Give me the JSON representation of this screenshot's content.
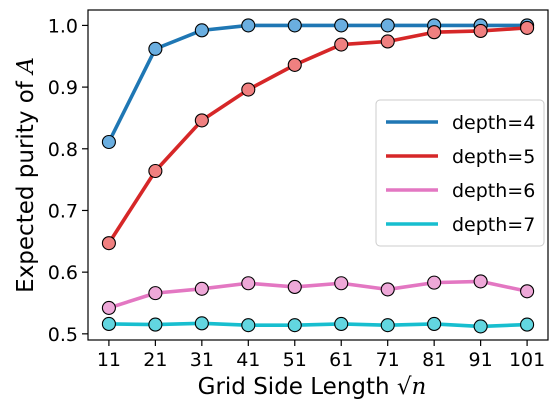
{
  "chart_data": {
    "type": "line",
    "title": "",
    "xlabel": "Grid Side Length",
    "xlabel_math": "√n",
    "ylabel": "Expected purity of",
    "ylabel_math": "A",
    "x": [
      11,
      21,
      31,
      41,
      51,
      61,
      71,
      81,
      91,
      101
    ],
    "x_tick_labels": [
      "11",
      "21",
      "31",
      "41",
      "51",
      "61",
      "71",
      "81",
      "91",
      "101"
    ],
    "xlim": [
      6.5,
      105.5
    ],
    "ylim": [
      0.49,
      1.025
    ],
    "y_ticks": [
      0.5,
      0.6,
      0.7,
      0.8,
      0.9,
      1.0
    ],
    "y_tick_labels": [
      "0.5",
      "0.6",
      "0.7",
      "0.8",
      "0.9",
      "1.0"
    ],
    "grid": false,
    "legend_position": "center-right",
    "series": [
      {
        "name": "depth=4",
        "color": "#1f77b4",
        "marker_color": "#6aaee0",
        "values": [
          0.811,
          0.962,
          0.992,
          1.0,
          1.0,
          1.0,
          1.0,
          1.0,
          1.0,
          1.0
        ]
      },
      {
        "name": "depth=5",
        "color": "#d62728",
        "marker_color": "#f08080",
        "values": [
          0.647,
          0.764,
          0.846,
          0.896,
          0.936,
          0.969,
          0.974,
          0.989,
          0.991,
          0.996
        ]
      },
      {
        "name": "depth=6",
        "color": "#e377c2",
        "marker_color": "#eea8d8",
        "values": [
          0.542,
          0.566,
          0.573,
          0.582,
          0.576,
          0.582,
          0.572,
          0.583,
          0.585,
          0.569
        ]
      },
      {
        "name": "depth=7",
        "color": "#17becf",
        "marker_color": "#62d6e0",
        "values": [
          0.516,
          0.515,
          0.517,
          0.514,
          0.514,
          0.516,
          0.514,
          0.516,
          0.512,
          0.515
        ]
      }
    ]
  }
}
